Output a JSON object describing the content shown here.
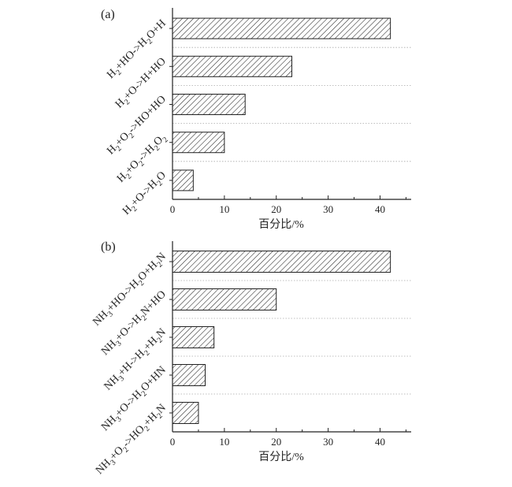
{
  "chart_data": [
    {
      "type": "bar",
      "orientation": "horizontal",
      "panel_label": "(a)",
      "categories": [
        {
          "parts": [
            [
              "H",
              "n"
            ],
            [
              "2",
              "sub"
            ],
            [
              "+HO->H",
              "n"
            ],
            [
              "2",
              "sub"
            ],
            [
              "O+H",
              "n"
            ]
          ]
        },
        {
          "parts": [
            [
              "H",
              "n"
            ],
            [
              "2",
              "sub"
            ],
            [
              "+O->H+HO",
              "n"
            ]
          ]
        },
        {
          "parts": [
            [
              "H",
              "n"
            ],
            [
              "2",
              "sub"
            ],
            [
              "+O",
              "n"
            ],
            [
              "2",
              "sub"
            ],
            [
              "->HO+HO",
              "n"
            ]
          ]
        },
        {
          "parts": [
            [
              "H",
              "n"
            ],
            [
              "2",
              "sub"
            ],
            [
              "+O",
              "n"
            ],
            [
              "2",
              "sub"
            ],
            [
              "->H",
              "n"
            ],
            [
              "2",
              "sub"
            ],
            [
              "O",
              "n"
            ],
            [
              "2",
              "sub"
            ]
          ]
        },
        {
          "parts": [
            [
              "H",
              "n"
            ],
            [
              "2",
              "sub"
            ],
            [
              "+O->H",
              "n"
            ],
            [
              "2",
              "sub"
            ],
            [
              "O",
              "n"
            ]
          ]
        }
      ],
      "values": [
        42,
        23,
        14,
        10,
        4
      ],
      "xlabel": "百分比/%",
      "xlim": [
        0,
        46
      ],
      "xticks": [
        "0",
        "10",
        "20",
        "30",
        "40"
      ],
      "grid": "dotted horizontal separators",
      "bar_fill": "diagonal hatch",
      "colors": {
        "stroke": "#222222",
        "grid": "#aaaaaa"
      }
    },
    {
      "type": "bar",
      "orientation": "horizontal",
      "panel_label": "(b)",
      "categories": [
        {
          "parts": [
            [
              "NH",
              "n"
            ],
            [
              "3",
              "sub"
            ],
            [
              "+HO->H",
              "n"
            ],
            [
              "2",
              "sub"
            ],
            [
              "O+H",
              "n"
            ],
            [
              "2",
              "sub"
            ],
            [
              "N",
              "n"
            ]
          ]
        },
        {
          "parts": [
            [
              "NH",
              "n"
            ],
            [
              "3",
              "sub"
            ],
            [
              "+O->H",
              "n"
            ],
            [
              "2",
              "sub"
            ],
            [
              "N+HO",
              "n"
            ]
          ]
        },
        {
          "parts": [
            [
              "NH",
              "n"
            ],
            [
              "3",
              "sub"
            ],
            [
              "+H->H",
              "n"
            ],
            [
              "2",
              "sub"
            ],
            [
              "+H",
              "n"
            ],
            [
              "2",
              "sub"
            ],
            [
              "N",
              "n"
            ]
          ]
        },
        {
          "parts": [
            [
              "NH",
              "n"
            ],
            [
              "3",
              "sub"
            ],
            [
              "+O->H",
              "n"
            ],
            [
              "2",
              "sub"
            ],
            [
              "O+HN",
              "n"
            ]
          ]
        },
        {
          "parts": [
            [
              "NH",
              "n"
            ],
            [
              "3",
              "sub"
            ],
            [
              "+O",
              "n"
            ],
            [
              "2",
              "sub"
            ],
            [
              "->HO",
              "n"
            ],
            [
              "2",
              "sub"
            ],
            [
              "+H",
              "n"
            ],
            [
              "2",
              "sub"
            ],
            [
              "N",
              "n"
            ]
          ]
        }
      ],
      "values": [
        42,
        20,
        8,
        6.3,
        5
      ],
      "xlabel": "百分比/%",
      "xlim": [
        0,
        46
      ],
      "xticks": [
        "0",
        "10",
        "20",
        "30",
        "40"
      ],
      "grid": "dotted horizontal separators",
      "bar_fill": "diagonal hatch",
      "colors": {
        "stroke": "#222222",
        "grid": "#aaaaaa"
      }
    }
  ]
}
